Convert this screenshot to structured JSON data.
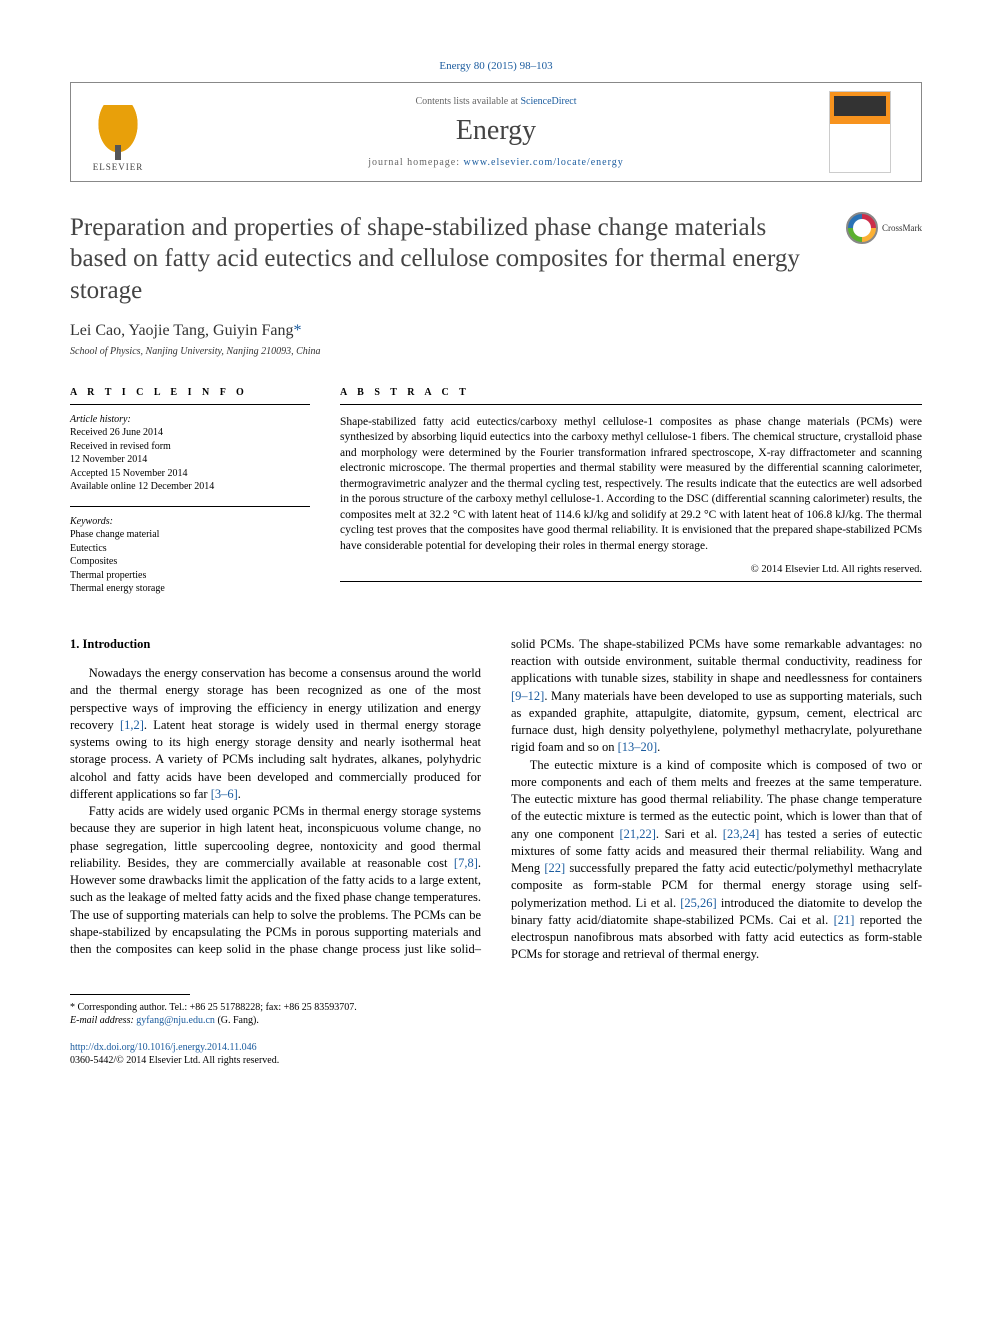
{
  "citation": "Energy 80 (2015) 98–103",
  "contents_prefix": "Contents lists available at ",
  "contents_link": "ScienceDirect",
  "journal_name": "Energy",
  "homepage_prefix": "journal homepage: ",
  "homepage_link": "www.elsevier.com/locate/energy",
  "publisher_logo_text": "ELSEVIER",
  "crossmark_label": "CrossMark",
  "title": "Preparation and properties of shape-stabilized phase change materials based on fatty acid eutectics and cellulose composites for thermal energy storage",
  "authors_line": "Lei Cao, Yaojie Tang, Guiyin Fang",
  "corr_marker": "*",
  "affiliation": "School of Physics, Nanjing University, Nanjing 210093, China",
  "article_info_label": "A R T I C L E  I N F O",
  "abstract_label": "A B S T R A C T",
  "history_label": "Article history:",
  "history": {
    "received": "Received 26 June 2014",
    "revised": "Received in revised form",
    "revised_date": "12 November 2014",
    "accepted": "Accepted 15 November 2014",
    "online": "Available online 12 December 2014"
  },
  "keywords_label": "Keywords:",
  "keywords": [
    "Phase change material",
    "Eutectics",
    "Composites",
    "Thermal properties",
    "Thermal energy storage"
  ],
  "abstract_text": "Shape-stabilized fatty acid eutectics/carboxy methyl cellulose-1 composites as phase change materials (PCMs) were synthesized by absorbing liquid eutectics into the carboxy methyl cellulose-1 fibers. The chemical structure, crystalloid phase and morphology were determined by the Fourier transformation infrared spectroscope, X-ray diffractometer and scanning electronic microscope. The thermal properties and thermal stability were measured by the differential scanning calorimeter, thermogravimetric analyzer and the thermal cycling test, respectively. The results indicate that the eutectics are well adsorbed in the porous structure of the carboxy methyl cellulose-1. According to the DSC (differential scanning calorimeter) results, the composites melt at 32.2 °C with latent heat of 114.6 kJ/kg and solidify at 29.2 °C with latent heat of 106.8 kJ/kg. The thermal cycling test proves that the composites have good thermal reliability. It is envisioned that the prepared shape-stabilized PCMs have considerable potential for developing their roles in thermal energy storage.",
  "copyright": "© 2014 Elsevier Ltd. All rights reserved.",
  "section_heading": "1. Introduction",
  "body_paragraphs": [
    "Nowadays the energy conservation has become a consensus around the world and the thermal energy storage has been recognized as one of the most perspective ways of improving the efficiency in energy utilization and energy recovery [1,2]. Latent heat storage is widely used in thermal energy storage systems owing to its high energy storage density and nearly isothermal heat storage process. A variety of PCMs including salt hydrates, alkanes, polyhydric alcohol and fatty acids have been developed and commercially produced for different applications so far [3–6].",
    "Fatty acids are widely used organic PCMs in thermal energy storage systems because they are superior in high latent heat, inconspicuous volume change, no phase segregation, little supercooling degree, nontoxicity and good thermal reliability. Besides, they are commercially available at reasonable cost [7,8]. However some drawbacks limit the application of the fatty acids to a large extent, such as the leakage of melted fatty acids and the fixed phase change temperatures. The use of supporting materials can help to solve the problems. The PCMs can be shape-stabilized by encapsulating the PCMs in porous supporting materials and then the composites can keep solid in the phase change process just like solid–solid PCMs. The shape-stabilized PCMs have some remarkable advantages: no reaction with outside environment, suitable thermal conductivity, readiness for applications with tunable sizes, stability in shape and needlessness for containers [9–12]. Many materials have been developed to use as supporting materials, such as expanded graphite, attapulgite, diatomite, gypsum, cement, electrical arc furnace dust, high density polyethylene, polymethyl methacrylate, polyurethane rigid foam and so on [13–20].",
    "The eutectic mixture is a kind of composite which is composed of two or more components and each of them melts and freezes at the same temperature. The eutectic mixture has good thermal reliability. The phase change temperature of the eutectic mixture is termed as the eutectic point, which is lower than that of any one component [21,22]. Sari et al. [23,24] has tested a series of eutectic mixtures of some fatty acids and measured their thermal reliability. Wang and Meng [22] successfully prepared the fatty acid eutectic/polymethyl methacrylate composite as form-stable PCM for thermal energy storage using self-polymerization method. Li et al. [25,26] introduced the diatomite to develop the binary fatty acid/diatomite shape-stabilized PCMs. Cai et al. [21] reported the electrospun nanofibrous mats absorbed with fatty acid eutectics as form-stable PCMs for storage and retrieval of thermal energy."
  ],
  "refs_inline": {
    "r1": "[1,2]",
    "r2": "[3–6]",
    "r3": "[7,8]",
    "r4": "[9–12]",
    "r5": "[13–20]",
    "r6": "[21,22]",
    "r7": "[23,24]",
    "r8": "[22]",
    "r9": "[25,26]",
    "r10": "[21]"
  },
  "footnote": {
    "corr_label": "* Corresponding author. Tel.: +86 25 51788228; fax: +86 25 83593707.",
    "email_label": "E-mail address: ",
    "email": "gyfang@nju.edu.cn",
    "email_suffix": " (G. Fang)."
  },
  "doi_link": "http://dx.doi.org/10.1016/j.energy.2014.11.046",
  "issn_line": "0360-5442/© 2014 Elsevier Ltd. All rights reserved.",
  "colors": {
    "link": "#1a5b9e",
    "text": "#000000",
    "heading": "#444444",
    "accent_orange": "#f7931e"
  },
  "fonts": {
    "body": "Georgia/Times",
    "title": "Palatino",
    "body_size_pt": 9,
    "title_size_pt": 18
  }
}
